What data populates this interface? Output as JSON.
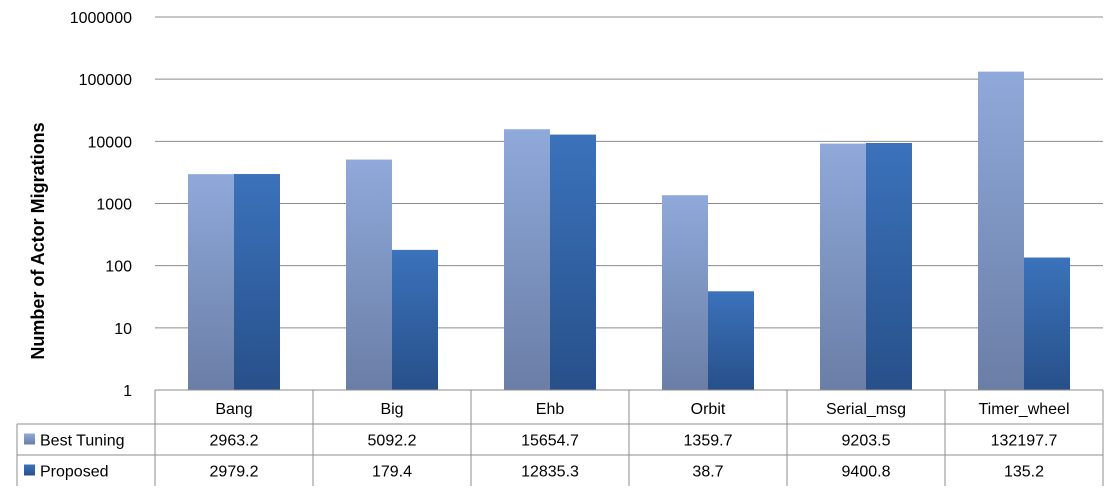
{
  "chart_data": {
    "type": "bar",
    "ylabel": "Number of Actor Migrations",
    "yscale": "log",
    "ylim": [
      1,
      1000000
    ],
    "yticks": [
      "1",
      "10",
      "100",
      "1000",
      "10000",
      "100000",
      "1000000"
    ],
    "grid": true,
    "legend": "data-table-left",
    "categories": [
      "Bang",
      "Big",
      "Ehb",
      "Orbit",
      "Serial_msg",
      "Timer_wheel"
    ],
    "series": [
      {
        "name": "Best Tuning",
        "color": "#8ea8d8",
        "values": [
          2963.2,
          5092.2,
          15654.7,
          1359.7,
          9203.5,
          132197.7
        ],
        "labels": [
          "2963.2",
          "5092.2",
          "15654.7",
          "1359.7",
          "9203.5",
          "132197.7"
        ]
      },
      {
        "name": "Proposed",
        "color": "#3a6fb5",
        "values": [
          2979.2,
          179.4,
          12835.3,
          38.7,
          9400.8,
          135.2
        ],
        "labels": [
          "2979.2",
          "179.4",
          "12835.3",
          "38.7",
          "9400.8",
          "135.2"
        ]
      }
    ]
  }
}
